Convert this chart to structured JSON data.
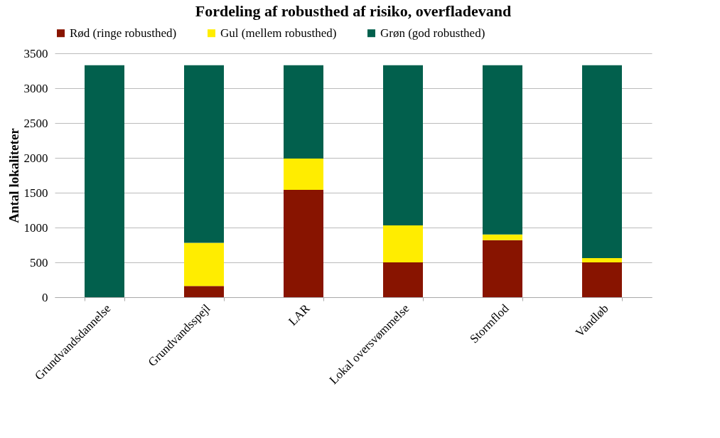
{
  "chart_data": {
    "type": "bar",
    "title": "Fordeling af robusthed af risiko, overfladevand",
    "ylabel": "Antal lokaliteter",
    "stacked": true,
    "categories": [
      "Grundvandsdannelse",
      "Grundvandsspejl",
      "LAR",
      "Lokal oversvømmelse",
      "Stormflod",
      "Vandløb"
    ],
    "series": [
      {
        "name": "Rød (ringe robusthed)",
        "color": "#881400",
        "values": [
          0,
          160,
          1540,
          500,
          820,
          500
        ]
      },
      {
        "name": "Gul (mellem robusthed)",
        "color": "#ffed00",
        "values": [
          0,
          620,
          450,
          530,
          80,
          60
        ]
      },
      {
        "name": "Grøn (god robusthed)",
        "color": "#02604d",
        "values": [
          3330,
          2550,
          1340,
          2300,
          2430,
          2770
        ]
      }
    ],
    "ylim": [
      0,
      3500
    ],
    "yticks": [
      0,
      500,
      1000,
      1500,
      2000,
      2500,
      3000,
      3500
    ],
    "grid": "y",
    "legend": "top"
  }
}
